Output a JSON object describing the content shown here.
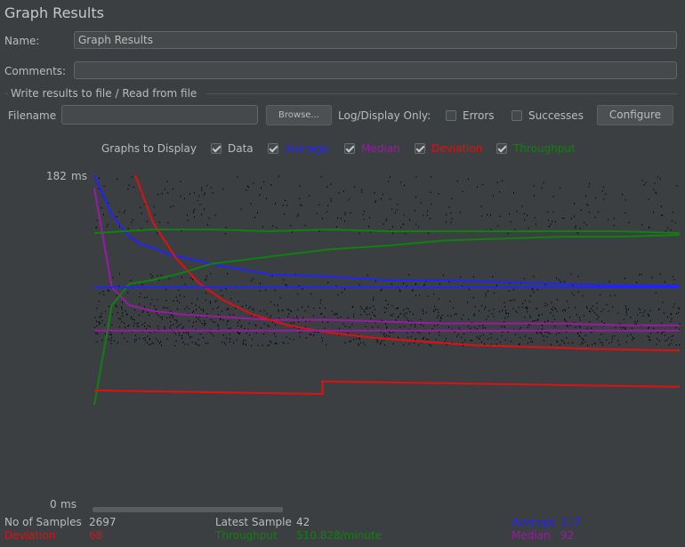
{
  "window": {
    "title": "Graph Results"
  },
  "form": {
    "name_label": "Name:",
    "name_value": "Graph Results",
    "comments_label": "Comments:",
    "comments_value": ""
  },
  "file_group": {
    "legend": "Write results to file / Read from file",
    "filename_label": "Filename",
    "filename_value": "",
    "browse_label": "Browse...",
    "log_display_label": "Log/Display Only:",
    "errors_label": "Errors",
    "errors_checked": false,
    "successes_label": "Successes",
    "successes_checked": false,
    "configure_label": "Configure"
  },
  "graphs": {
    "label": "Graphs to Display",
    "items": [
      {
        "label": "Data",
        "checked": true,
        "color": "#bbbbbb"
      },
      {
        "label": "Average",
        "checked": true,
        "color": "#2222ff"
      },
      {
        "label": "Median",
        "checked": true,
        "color": "#9a1aa6"
      },
      {
        "label": "Deviation",
        "checked": true,
        "color": "#e01010"
      },
      {
        "label": "Throughput",
        "checked": true,
        "color": "#108010"
      }
    ]
  },
  "axis": {
    "max_label": "182",
    "min_label": "0",
    "unit": "ms"
  },
  "chart_data": {
    "type": "line",
    "ylim": [
      0,
      182
    ],
    "ylabel": "ms",
    "series": [
      {
        "name": "Average",
        "color": "#2222ff",
        "x": [
          0,
          3,
          6,
          8,
          10,
          13,
          16,
          20,
          25,
          30,
          40,
          50,
          60,
          70,
          80,
          90,
          100
        ],
        "y": [
          182,
          160,
          148,
          144,
          142,
          138,
          136,
          133,
          130,
          127,
          126,
          124,
          124,
          123,
          122,
          121,
          121
        ]
      },
      {
        "name": "Median",
        "color": "#9a1aa6",
        "x": [
          0,
          3,
          6,
          10,
          15,
          20,
          30,
          40,
          50,
          60,
          70,
          80,
          90,
          100
        ],
        "y": [
          175,
          120,
          110,
          107,
          105,
          104,
          102,
          102,
          101,
          100,
          100,
          100,
          99,
          99
        ]
      },
      {
        "name": "Deviation",
        "color": "#e01010",
        "x": [
          7,
          10,
          14,
          18,
          22,
          27,
          33,
          40,
          48,
          56,
          65,
          75,
          85,
          100
        ],
        "y": [
          182,
          156,
          136,
          122,
          113,
          105,
          99,
          95,
          92,
          90,
          88,
          87,
          86,
          85
        ]
      },
      {
        "name": "Throughput",
        "color": "#108010",
        "x": [
          0,
          3,
          6,
          10,
          15,
          20,
          30,
          40,
          50,
          60,
          70,
          80,
          90,
          100
        ],
        "y": [
          55,
          110,
          122,
          124,
          128,
          133,
          137,
          141,
          143,
          146,
          147,
          148,
          148,
          149
        ]
      },
      {
        "name": "Throughput (steady)",
        "color": "#108010",
        "x": [
          0,
          10,
          20,
          30,
          40,
          50,
          60,
          70,
          80,
          90,
          100
        ],
        "y": [
          150,
          152,
          152,
          151,
          152,
          151,
          151,
          151,
          151,
          151,
          150
        ]
      },
      {
        "name": "Average (steady)",
        "color": "#2222ff",
        "x": [
          0,
          100
        ],
        "y": [
          120,
          120
        ]
      },
      {
        "name": "Median (steady)",
        "color": "#9a1aa6",
        "x": [
          0,
          100
        ],
        "y": [
          96,
          96
        ]
      },
      {
        "name": "Deviation (low)",
        "color": "#e01010",
        "x": [
          0,
          39,
          39,
          100
        ],
        "y": [
          63,
          61,
          68,
          65
        ]
      }
    ]
  },
  "stats": {
    "samples_label": "No of Samples",
    "samples_value": "2697",
    "latest_label": "Latest Sample",
    "latest_value": "42",
    "average_label": "Average",
    "average_value": "117",
    "deviation_label": "Deviation",
    "deviation_value": "68",
    "throughput_label": "Throughput",
    "throughput_value": "510.828/minute",
    "median_label": "Median",
    "median_value": "92"
  },
  "colors": {
    "background": "#3c3f41",
    "data_points": "#000000",
    "average": "#2222ff",
    "median": "#9a1aa6",
    "deviation": "#e01010",
    "throughput": "#108010"
  }
}
